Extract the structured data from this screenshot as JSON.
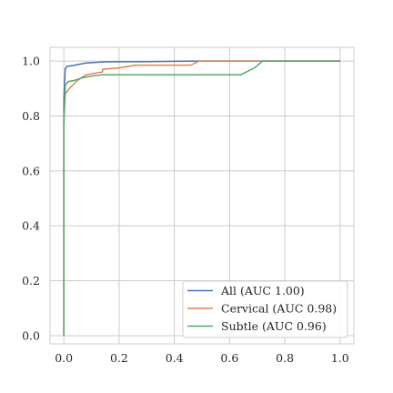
{
  "chart_data": {
    "type": "line",
    "title": "",
    "xlabel": "",
    "ylabel": "",
    "xlim": [
      -0.05,
      1.05
    ],
    "ylim": [
      -0.03,
      1.05
    ],
    "grid": true,
    "legend_position": "bottom-right",
    "x_ticks": [
      "0.0",
      "0.2",
      "0.4",
      "0.6",
      "0.8",
      "1.0"
    ],
    "y_ticks": [
      "0.0",
      "0.2",
      "0.4",
      "0.6",
      "0.8",
      "1.0"
    ],
    "series": [
      {
        "name": "All (AUC 1.00)",
        "color": "#4c72b0",
        "x": [
          0,
          0,
          0.005,
          0.01,
          0.04,
          0.08,
          0.15,
          0.3,
          0.47,
          1.0
        ],
        "y": [
          0,
          0.86,
          0.97,
          0.98,
          0.985,
          0.993,
          0.997,
          0.998,
          1.0,
          1.0
        ]
      },
      {
        "name": "Cervical (AUC 0.98)",
        "color": "#dd8452",
        "x": [
          0,
          0,
          0.005,
          0.02,
          0.05,
          0.08,
          0.14,
          0.14,
          0.2,
          0.26,
          0.46,
          0.49,
          0.72,
          1.0
        ],
        "y": [
          0,
          0.79,
          0.88,
          0.9,
          0.93,
          0.95,
          0.96,
          0.97,
          0.975,
          0.985,
          0.985,
          1.0,
          1.0,
          1.0
        ]
      },
      {
        "name": "Subtle (AUC 0.96)",
        "color": "#55a868",
        "x": [
          0,
          0,
          0.005,
          0.015,
          0.04,
          0.07,
          0.1,
          0.14,
          0.64,
          0.69,
          0.72,
          1.0
        ],
        "y": [
          0,
          0.76,
          0.91,
          0.925,
          0.93,
          0.94,
          0.945,
          0.95,
          0.95,
          0.975,
          1.0,
          1.0
        ]
      }
    ]
  }
}
